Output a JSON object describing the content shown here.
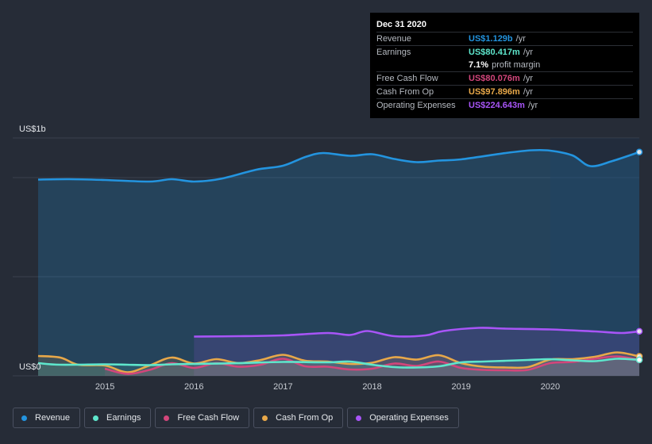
{
  "chart_data": {
    "type": "area",
    "y_axis": {
      "top_label": "US$1b",
      "bottom_label": "US$0",
      "ylim_millions": [
        0,
        1200
      ],
      "gridlines_millions": [
        0,
        500,
        1000,
        1200
      ]
    },
    "x_axis": {
      "tick_labels": [
        "2015",
        "2016",
        "2017",
        "2018",
        "2019",
        "2020"
      ],
      "xlim_years": [
        2014.25,
        2021.0
      ]
    },
    "forecast_shade_start_year": 2020.0,
    "series": [
      {
        "name": "Revenue",
        "color": "#2394df",
        "points": [
          [
            2014.25,
            990
          ],
          [
            2014.6,
            992
          ],
          [
            2015.0,
            988
          ],
          [
            2015.5,
            980
          ],
          [
            2015.75,
            992
          ],
          [
            2016.0,
            980
          ],
          [
            2016.3,
            994
          ],
          [
            2016.7,
            1040
          ],
          [
            2017.0,
            1060
          ],
          [
            2017.25,
            1104
          ],
          [
            2017.45,
            1124
          ],
          [
            2017.75,
            1110
          ],
          [
            2018.0,
            1118
          ],
          [
            2018.25,
            1094
          ],
          [
            2018.5,
            1078
          ],
          [
            2018.75,
            1086
          ],
          [
            2019.0,
            1092
          ],
          [
            2019.5,
            1124
          ],
          [
            2019.8,
            1138
          ],
          [
            2020.0,
            1136
          ],
          [
            2020.25,
            1112
          ],
          [
            2020.45,
            1058
          ],
          [
            2020.7,
            1084
          ],
          [
            2021.0,
            1129
          ]
        ]
      },
      {
        "name": "Operating Expenses",
        "color": "#a855f7",
        "points": [
          [
            2016.0,
            198
          ],
          [
            2016.5,
            200
          ],
          [
            2017.0,
            204
          ],
          [
            2017.5,
            216
          ],
          [
            2017.75,
            206
          ],
          [
            2017.95,
            226
          ],
          [
            2018.25,
            200
          ],
          [
            2018.6,
            204
          ],
          [
            2018.8,
            226
          ],
          [
            2019.2,
            242
          ],
          [
            2019.5,
            238
          ],
          [
            2020.0,
            234
          ],
          [
            2020.5,
            224
          ],
          [
            2020.8,
            216
          ],
          [
            2021.0,
            224.6
          ]
        ]
      },
      {
        "name": "Cash From Op",
        "color": "#e8a849",
        "points": [
          [
            2014.25,
            100
          ],
          [
            2014.5,
            92
          ],
          [
            2014.7,
            56
          ],
          [
            2015.0,
            52
          ],
          [
            2015.25,
            18
          ],
          [
            2015.5,
            52
          ],
          [
            2015.75,
            92
          ],
          [
            2016.0,
            62
          ],
          [
            2016.25,
            84
          ],
          [
            2016.5,
            64
          ],
          [
            2016.75,
            80
          ],
          [
            2017.0,
            106
          ],
          [
            2017.25,
            76
          ],
          [
            2017.5,
            72
          ],
          [
            2017.75,
            60
          ],
          [
            2018.0,
            66
          ],
          [
            2018.25,
            94
          ],
          [
            2018.5,
            82
          ],
          [
            2018.75,
            104
          ],
          [
            2019.0,
            64
          ],
          [
            2019.25,
            46
          ],
          [
            2019.5,
            42
          ],
          [
            2019.75,
            44
          ],
          [
            2020.0,
            82
          ],
          [
            2020.25,
            84
          ],
          [
            2020.5,
            96
          ],
          [
            2020.75,
            118
          ],
          [
            2021.0,
            97.9
          ]
        ]
      },
      {
        "name": "Free Cash Flow",
        "color": "#d2467b",
        "points": [
          [
            2015.0,
            36
          ],
          [
            2015.25,
            10
          ],
          [
            2015.5,
            30
          ],
          [
            2015.75,
            64
          ],
          [
            2016.0,
            40
          ],
          [
            2016.25,
            64
          ],
          [
            2016.5,
            46
          ],
          [
            2016.75,
            56
          ],
          [
            2017.0,
            86
          ],
          [
            2017.25,
            48
          ],
          [
            2017.5,
            46
          ],
          [
            2017.75,
            32
          ],
          [
            2018.0,
            36
          ],
          [
            2018.25,
            62
          ],
          [
            2018.5,
            50
          ],
          [
            2018.75,
            72
          ],
          [
            2019.0,
            40
          ],
          [
            2019.25,
            30
          ],
          [
            2019.5,
            28
          ],
          [
            2019.75,
            30
          ],
          [
            2020.0,
            64
          ],
          [
            2020.25,
            70
          ],
          [
            2020.5,
            86
          ],
          [
            2020.75,
            98
          ],
          [
            2021.0,
            80.1
          ]
        ]
      },
      {
        "name": "Earnings",
        "color": "#5ee6cc",
        "points": [
          [
            2014.25,
            64
          ],
          [
            2014.5,
            56
          ],
          [
            2015.0,
            58
          ],
          [
            2015.25,
            56
          ],
          [
            2015.5,
            54
          ],
          [
            2015.75,
            58
          ],
          [
            2016.0,
            60
          ],
          [
            2016.5,
            64
          ],
          [
            2017.0,
            70
          ],
          [
            2017.5,
            68
          ],
          [
            2017.75,
            72
          ],
          [
            2018.0,
            56
          ],
          [
            2018.25,
            44
          ],
          [
            2018.5,
            42
          ],
          [
            2018.75,
            48
          ],
          [
            2019.0,
            68
          ],
          [
            2019.25,
            72
          ],
          [
            2019.5,
            76
          ],
          [
            2019.75,
            80
          ],
          [
            2020.0,
            84
          ],
          [
            2020.25,
            78
          ],
          [
            2020.5,
            74
          ],
          [
            2020.75,
            86
          ],
          [
            2021.0,
            80.4
          ]
        ]
      }
    ]
  },
  "tooltip": {
    "date": "Dec 31 2020",
    "rows": [
      {
        "label": "Revenue",
        "value": "US$1.129b",
        "unit": "/yr",
        "color": "#2394df"
      },
      {
        "label": "Earnings",
        "value": "US$80.417m",
        "unit": "/yr",
        "color": "#5ee6cc"
      },
      {
        "label": "",
        "value": "7.1%",
        "unit": "profit margin",
        "color": "#ffffff"
      },
      {
        "label": "Free Cash Flow",
        "value": "US$80.076m",
        "unit": "/yr",
        "color": "#d2467b"
      },
      {
        "label": "Cash From Op",
        "value": "US$97.896m",
        "unit": "/yr",
        "color": "#e8a849"
      },
      {
        "label": "Operating Expenses",
        "value": "US$224.643m",
        "unit": "/yr",
        "color": "#a855f7"
      }
    ]
  },
  "legend": [
    {
      "label": "Revenue",
      "color": "#2394df"
    },
    {
      "label": "Earnings",
      "color": "#5ee6cc"
    },
    {
      "label": "Free Cash Flow",
      "color": "#d2467b"
    },
    {
      "label": "Cash From Op",
      "color": "#e8a849"
    },
    {
      "label": "Operating Expenses",
      "color": "#a855f7"
    }
  ]
}
